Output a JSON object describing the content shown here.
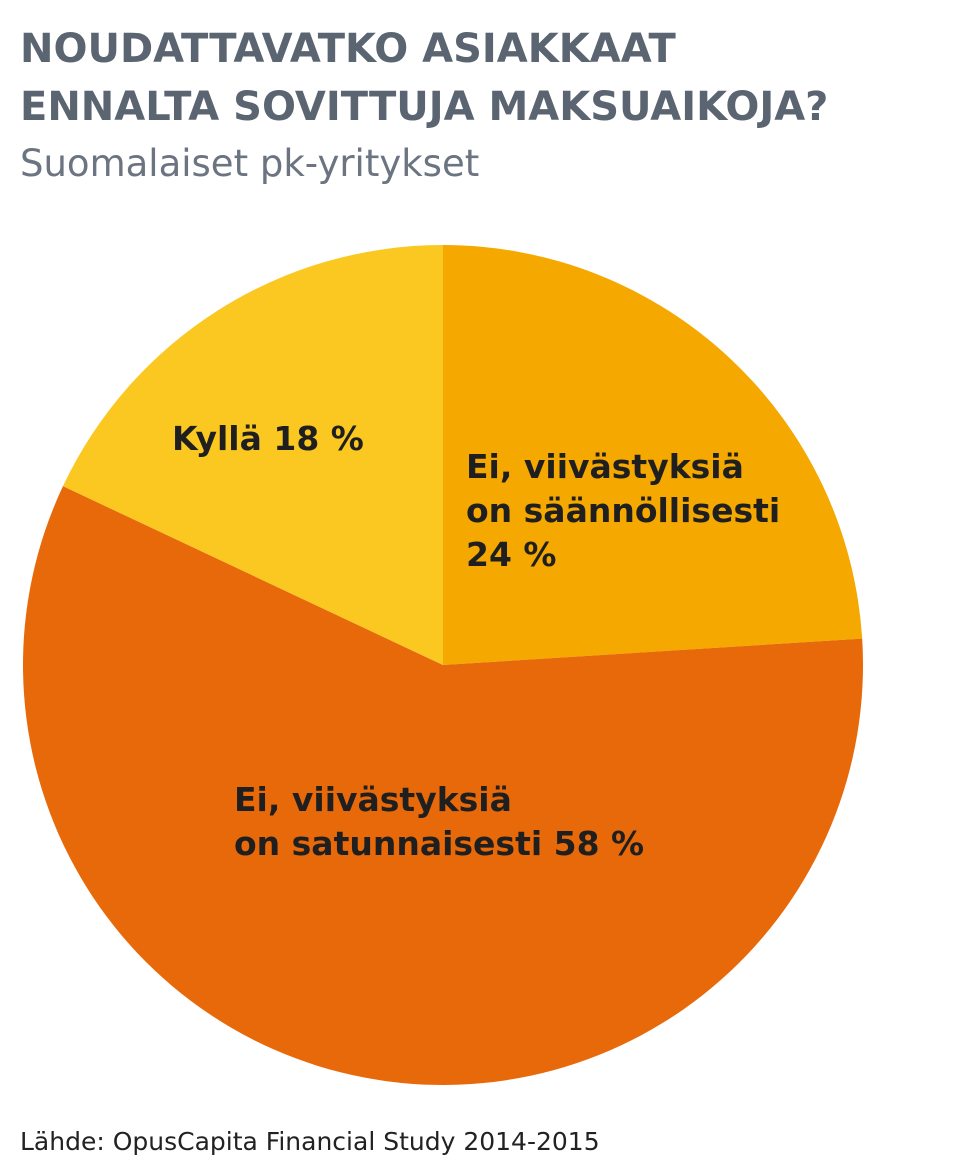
{
  "header": {
    "title_lines": [
      "NOUDATTAVATKO ASIAKKAAT",
      "ENNALTA SOVITTUJA MAKSUAIKOJA?"
    ],
    "subtitle": "Suomalaiset pk-yritykset"
  },
  "chart_data": {
    "type": "pie",
    "start_angle_deg": 0,
    "direction": "clockwise",
    "slices": [
      {
        "label": "Ei, viivästyksiä on säännöllisesti",
        "label_lines": [
          "Ei, viivästyksiä",
          "on säännöllisesti",
          "24 %"
        ],
        "value": 24,
        "color": "#f5a800"
      },
      {
        "label": "Ei, viivästyksiä on satunnaisesti",
        "label_lines": [
          "Ei, viivästyksiä",
          "on satunnaisesti 58 %"
        ],
        "value": 58,
        "color": "#e8690a"
      },
      {
        "label": "Kyllä",
        "label_lines": [
          "Kyllä 18 %"
        ],
        "value": 18,
        "color": "#fac820"
      }
    ]
  },
  "footer": {
    "source": "Lähde: OpusCapita Financial Study 2014-2015"
  }
}
